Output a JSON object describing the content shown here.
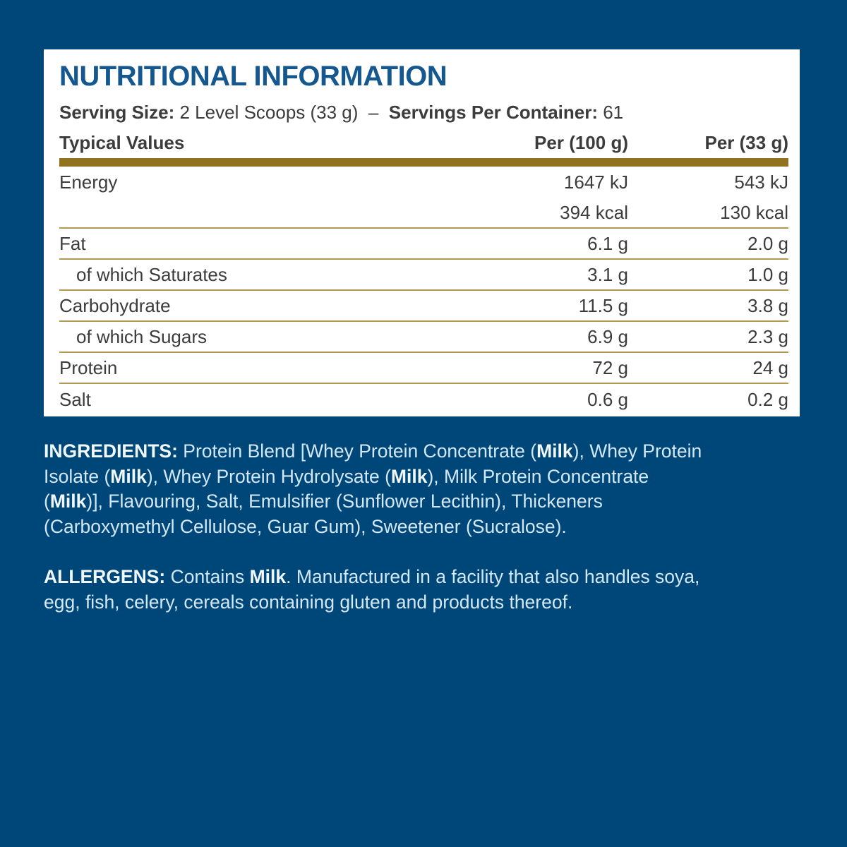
{
  "colors": {
    "background_navy": "#004779",
    "panel_white": "#ffffff",
    "title_blue": "#15578f",
    "text_dark": "#3c3c3c",
    "gold_header_bar": "#91731f",
    "gold_divider": "#b3984f",
    "light_blue_text": "#d3e8f6"
  },
  "panel": {
    "title": "NUTRITIONAL INFORMATION",
    "serving_line": [
      {
        "t": "Serving Size: ",
        "b": true
      },
      {
        "t": "2 Level Scoops (33 g)",
        "b": false
      },
      {
        "t": "  –  ",
        "b": false
      },
      {
        "t": "Servings Per Container: ",
        "b": true
      },
      {
        "t": "61",
        "b": false
      }
    ],
    "table": {
      "header": {
        "typical_values": "Typical Values",
        "per_100": "Per (100 g)",
        "per_33": "Per (33 g)"
      },
      "rows": [
        {
          "label": "Energy",
          "per100": "1647 kJ",
          "per33": "543 kJ",
          "indent": false,
          "divider": false
        },
        {
          "label": "",
          "per100": "394 kcal",
          "per33": "130 kcal",
          "indent": false,
          "divider": true
        },
        {
          "label": "Fat",
          "per100": "6.1 g",
          "per33": "2.0 g",
          "indent": false,
          "divider": true
        },
        {
          "label": "of which Saturates",
          "per100": "3.1 g",
          "per33": "1.0 g",
          "indent": true,
          "divider": true
        },
        {
          "label": "Carbohydrate",
          "per100": "11.5 g",
          "per33": "3.8 g",
          "indent": false,
          "divider": true
        },
        {
          "label": "of which Sugars",
          "per100": "6.9 g",
          "per33": "2.3 g",
          "indent": true,
          "divider": true
        },
        {
          "label": "Protein",
          "per100": "72 g",
          "per33": "24 g",
          "indent": false,
          "divider": true
        },
        {
          "label": "Salt",
          "per100": "0.6 g",
          "per33": "0.2 g",
          "indent": false,
          "divider": false
        }
      ]
    }
  },
  "ingredients": {
    "lines": [
      [
        {
          "t": "INGREDIENTS: ",
          "b": true
        },
        {
          "t": "Protein Blend [Whey Protein Concentrate (",
          "b": false
        },
        {
          "t": "Milk",
          "b": true
        },
        {
          "t": "), Whey Protein",
          "b": false
        }
      ],
      [
        {
          "t": "Isolate (",
          "b": false
        },
        {
          "t": "Milk",
          "b": true
        },
        {
          "t": "), Whey Protein Hydrolysate (",
          "b": false
        },
        {
          "t": "Milk",
          "b": true
        },
        {
          "t": "), Milk Protein Concentrate",
          "b": false
        }
      ],
      [
        {
          "t": "(",
          "b": false
        },
        {
          "t": "Milk",
          "b": true
        },
        {
          "t": ")], Flavouring, Salt, Emulsifier (Sunflower Lecithin), Thickeners",
          "b": false
        }
      ],
      [
        {
          "t": "(Carboxymethyl Cellulose, Guar Gum), Sweetener (Sucralose).",
          "b": false
        }
      ]
    ]
  },
  "allergens": {
    "lines": [
      [
        {
          "t": "ALLERGENS: ",
          "b": true
        },
        {
          "t": "Contains ",
          "b": false
        },
        {
          "t": "Milk",
          "b": true
        },
        {
          "t": ". Manufactured in a facility that also handles soya,",
          "b": false
        }
      ],
      [
        {
          "t": "egg, fish, celery, cereals containing gluten and products thereof.",
          "b": false
        }
      ]
    ]
  }
}
